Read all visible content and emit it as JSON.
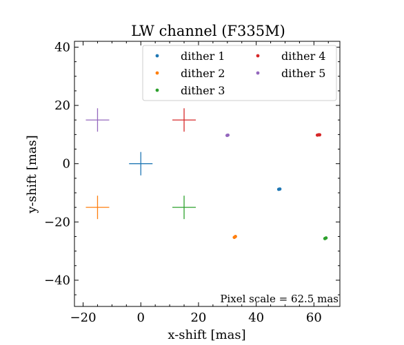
{
  "chart_data": {
    "type": "scatter",
    "title": "LW channel (F335M)",
    "xlabel": "x-shift [mas]",
    "ylabel": "y-shift [mas]",
    "xlim": [
      -23,
      69
    ],
    "ylim": [
      -49,
      42
    ],
    "x_ticks": [
      -20,
      0,
      20,
      40,
      60
    ],
    "x_tick_labels": [
      "−20",
      "0",
      "20",
      "40",
      "60"
    ],
    "y_ticks": [
      -40,
      -20,
      0,
      20,
      40
    ],
    "y_tick_labels": [
      "−40",
      "−20",
      "0",
      "20",
      "40"
    ],
    "grid": false,
    "legend_placement": "top-right",
    "annotation": "Pixel scale = 62.5 mas",
    "series": [
      {
        "name": "dither 1",
        "color": "#1f77b4",
        "target": [
          0,
          0
        ],
        "points": [
          [
            47.8,
            -8.8
          ],
          [
            48.2,
            -8.7
          ]
        ]
      },
      {
        "name": "dither 2",
        "color": "#ff7f0e",
        "target": [
          -15,
          -15
        ],
        "points": [
          [
            32.4,
            -25.3
          ],
          [
            32.8,
            -25.0
          ]
        ]
      },
      {
        "name": "dither 3",
        "color": "#2ca02c",
        "target": [
          15,
          -15
        ],
        "points": [
          [
            63.8,
            -25.7
          ],
          [
            64.2,
            -25.5
          ]
        ]
      },
      {
        "name": "dither 4",
        "color": "#d62728",
        "target": [
          15,
          15
        ],
        "points": [
          [
            61.2,
            9.8
          ],
          [
            61.6,
            9.9
          ],
          [
            62.0,
            9.9
          ]
        ]
      },
      {
        "name": "dither 5",
        "color": "#9467bd",
        "target": [
          -15,
          15
        ],
        "points": [
          [
            29.9,
            9.7
          ],
          [
            30.2,
            9.8
          ]
        ]
      }
    ]
  }
}
